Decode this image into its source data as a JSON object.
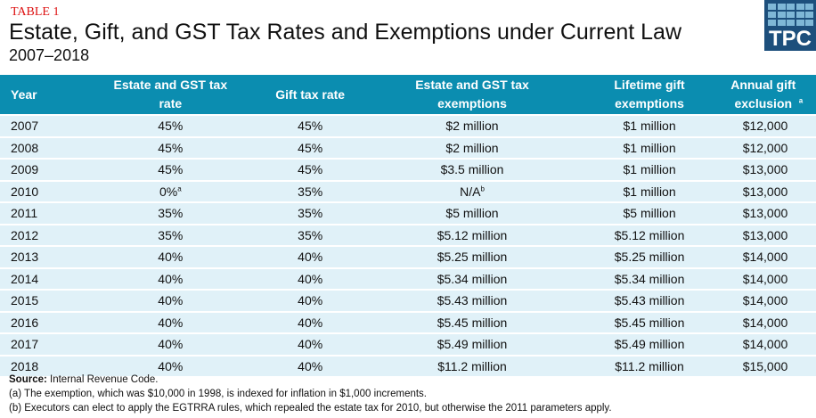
{
  "label": "TABLE 1",
  "title": "Estate, Gift, and GST Tax Rates and Exemptions under Current Law",
  "subtitle": "2007–2018",
  "logo": "TPC",
  "headers": [
    "Year",
    "Estate and GST tax rate",
    "Gift tax rate",
    "Estate and GST tax exemptions",
    "Lifetime gift exemptions",
    "Annual gift exclusion"
  ],
  "header_sup": "a",
  "rows": [
    [
      "2007",
      "45%",
      "45%",
      "$2 million",
      "$1 million",
      "$12,000"
    ],
    [
      "2008",
      "45%",
      "45%",
      "$2 million",
      "$1 million",
      "$12,000"
    ],
    [
      "2009",
      "45%",
      "45%",
      "$3.5 million",
      "$1 million",
      "$13,000"
    ],
    [
      "2010",
      "0%",
      "35%",
      "N/A",
      "$1 million",
      "$13,000"
    ],
    [
      "2011",
      "35%",
      "35%",
      "$5 million",
      "$5 million",
      "$13,000"
    ],
    [
      "2012",
      "35%",
      "35%",
      "$5.12 million",
      "$5.12 million",
      "$13,000"
    ],
    [
      "2013",
      "40%",
      "40%",
      "$5.25 million",
      "$5.25 million",
      "$14,000"
    ],
    [
      "2014",
      "40%",
      "40%",
      "$5.34 million",
      "$5.34 million",
      "$14,000"
    ],
    [
      "2015",
      "40%",
      "40%",
      "$5.43 million",
      "$5.43 million",
      "$14,000"
    ],
    [
      "2016",
      "40%",
      "40%",
      "$5.45 million",
      "$5.45 million",
      "$14,000"
    ],
    [
      "2017",
      "40%",
      "40%",
      "$5.49 million",
      "$5.49 million",
      "$14,000"
    ],
    [
      "2018",
      "40%",
      "40%",
      "$11.2 million",
      "$11.2 million",
      "$15,000"
    ]
  ],
  "sup_2010_rate": "a",
  "sup_2010_exempt": "b",
  "source_label": "Source:",
  "source": " Internal Revenue Code.",
  "note_a": "(a) The exemption, which was $10,000 in 1998, is indexed for inflation in $1,000 increments.",
  "note_b": "(b) Executors can elect to apply the EGTRRA rules, which repealed the estate tax for 2010, but otherwise the 2011 parameters apply."
}
